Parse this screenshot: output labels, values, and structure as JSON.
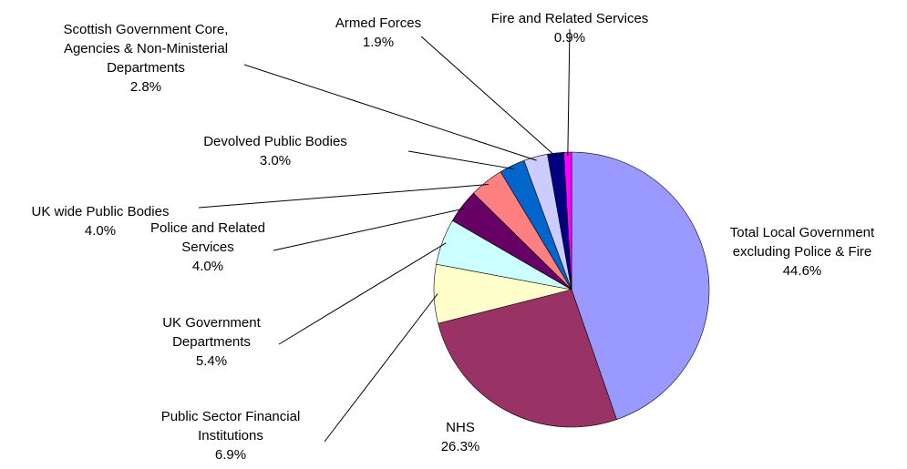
{
  "chart_data": {
    "type": "pie",
    "categories": [
      "Total Local Government excluding Police & Fire",
      "NHS",
      "Public Sector Financial Institutions",
      "UK Government Departments",
      "Police and Related Services",
      "UK wide Public Bodies",
      "Devolved Public Bodies",
      "Scottish Government Core, Agencies & Non-Ministerial Departments",
      "Armed Forces",
      "Fire and Related Services"
    ],
    "values": [
      44.6,
      26.3,
      6.9,
      5.4,
      4.0,
      4.0,
      3.0,
      2.8,
      1.9,
      0.9
    ],
    "value_labels": [
      "44.6%",
      "26.3%",
      "6.9%",
      "5.4%",
      "4.0%",
      "4.0%",
      "3.0%",
      "2.8%",
      "1.9%",
      "0.9%"
    ],
    "colors": [
      "#9999ff",
      "#993366",
      "#ffffcc",
      "#ccffff",
      "#660066",
      "#ff8080",
      "#0066cc",
      "#ccccff",
      "#000080",
      "#ff00ff"
    ]
  }
}
